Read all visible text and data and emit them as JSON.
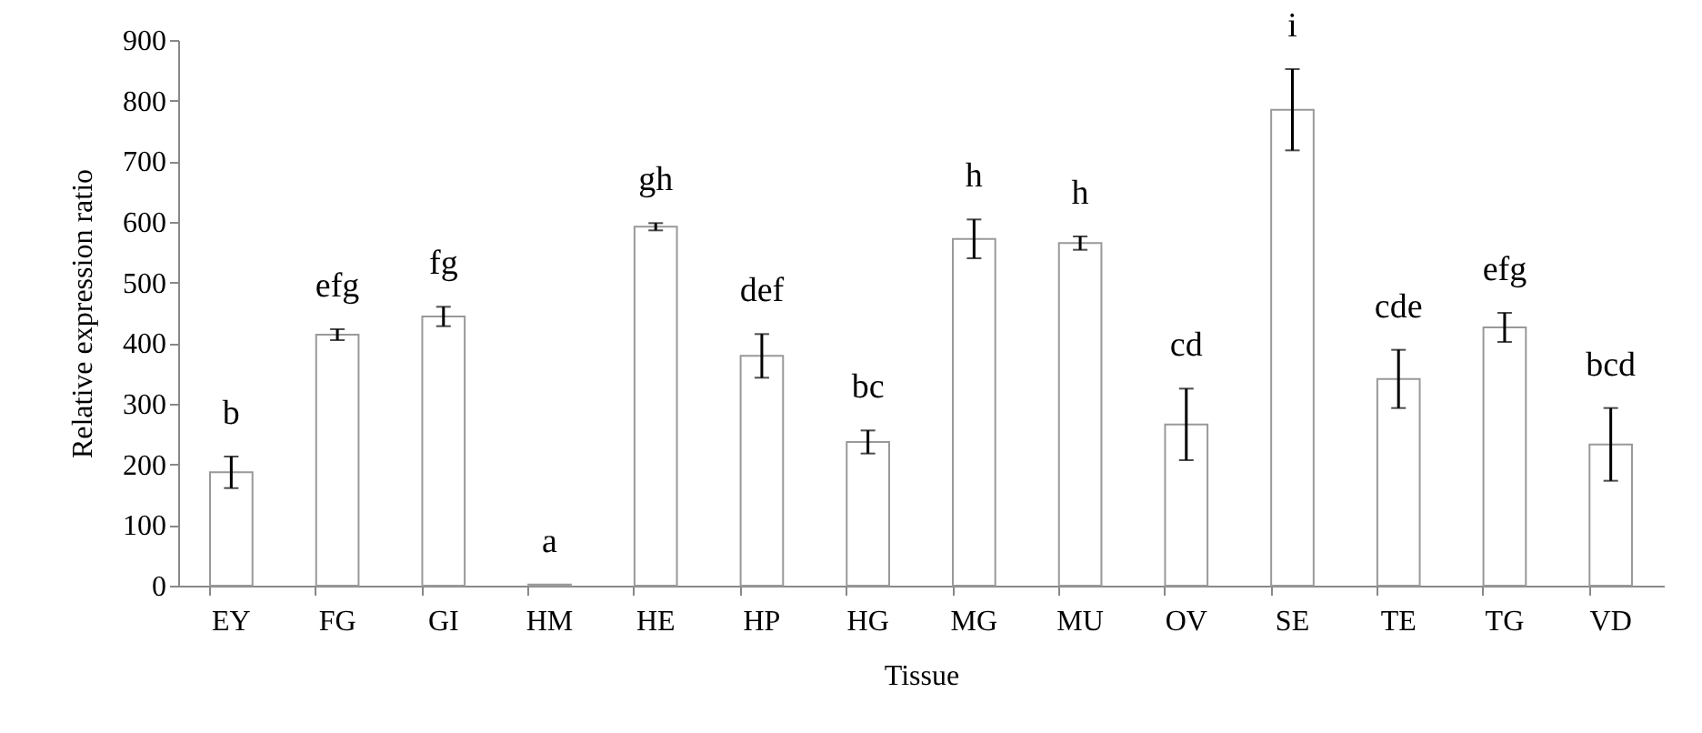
{
  "chart_data": {
    "type": "bar",
    "xlabel": "Tissue",
    "ylabel": "Relative expression ratio",
    "categories": [
      "EY",
      "FG",
      "GI",
      "HM",
      "HE",
      "HP",
      "HG",
      "MG",
      "MU",
      "OV",
      "SE",
      "TE",
      "TG",
      "VD"
    ],
    "values": [
      187,
      414,
      444,
      2,
      592,
      379,
      237,
      572,
      565,
      266,
      785,
      341,
      426,
      233
    ],
    "errors": [
      26,
      9,
      16,
      null,
      6,
      36,
      19,
      32,
      11,
      59,
      67,
      48,
      24,
      60
    ],
    "color": "#ffffff",
    "ylim": [
      0,
      900
    ],
    "yticks": [
      0,
      100,
      200,
      300,
      400,
      500,
      600,
      700,
      800,
      900
    ],
    "grid": false,
    "annotations": [
      {
        "text": "b",
        "x": "EY",
        "y": 187
      },
      {
        "text": "efg",
        "x": "FG",
        "y": 414
      },
      {
        "text": "fg",
        "x": "GI",
        "y": 444
      },
      {
        "text": "a",
        "x": "HM",
        "y": 2
      },
      {
        "text": "gh",
        "x": "HE",
        "y": 592
      },
      {
        "text": "def",
        "x": "HP",
        "y": 379
      },
      {
        "text": "bc",
        "x": "HG",
        "y": 237
      },
      {
        "text": "h",
        "x": "MG",
        "y": 572
      },
      {
        "text": "h",
        "x": "MU",
        "y": 565
      },
      {
        "text": "cd",
        "x": "OV",
        "y": 266
      },
      {
        "text": "i",
        "x": "SE",
        "y": 785
      },
      {
        "text": "cde",
        "x": "TE",
        "y": 341
      },
      {
        "text": "efg",
        "x": "TG",
        "y": 426
      },
      {
        "text": "bcd",
        "x": "VD",
        "y": 233
      }
    ]
  }
}
